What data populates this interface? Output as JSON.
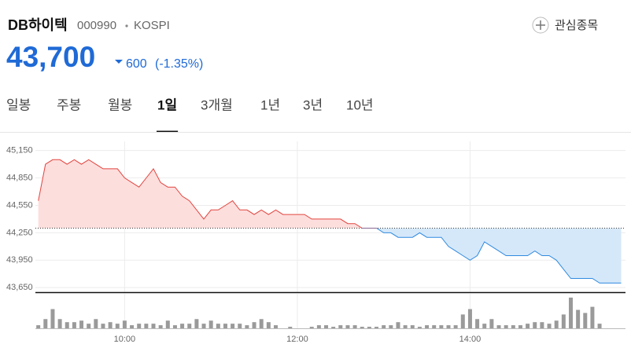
{
  "header": {
    "name": "DB하이텍",
    "code": "000990",
    "market": "KOSPI",
    "watch_button": "관심종목",
    "price": "43,700",
    "change": "600",
    "change_rate": "(-1.35%)"
  },
  "tabs": {
    "items": [
      "일봉",
      "주봉",
      "월봉",
      "1일",
      "3개월",
      "1년",
      "3년",
      "10년"
    ],
    "selected": "1일"
  },
  "chart_data": [
    {
      "type": "line",
      "x": [
        540,
        545,
        550,
        555,
        560,
        565,
        570,
        575,
        580,
        585,
        590,
        595,
        600,
        605,
        610,
        615,
        620,
        625,
        630,
        635,
        640,
        645,
        650,
        655,
        660,
        665,
        670,
        675,
        680,
        685,
        690,
        695,
        700,
        705,
        710,
        715,
        720,
        725,
        730,
        735,
        740,
        745,
        750,
        755,
        760,
        765,
        770,
        775,
        780,
        785,
        790,
        795,
        800,
        805,
        810,
        815,
        820,
        825,
        830,
        835,
        840,
        845,
        850,
        855,
        860,
        865,
        870,
        875,
        880,
        885,
        890,
        895,
        900,
        905,
        910,
        915,
        920,
        925,
        930,
        935,
        940,
        945
      ],
      "values": [
        44600,
        45000,
        45050,
        45050,
        45000,
        45050,
        45000,
        45050,
        45000,
        44950,
        44950,
        44950,
        44850,
        44800,
        44750,
        44850,
        44950,
        44800,
        44750,
        44750,
        44650,
        44600,
        44500,
        44400,
        44500,
        44500,
        44550,
        44600,
        44500,
        44500,
        44450,
        44500,
        44450,
        44500,
        44450,
        44450,
        44450,
        44450,
        44400,
        44400,
        44400,
        44400,
        44400,
        44350,
        44350,
        44300,
        44300,
        44300,
        44250,
        44250,
        44200,
        44200,
        44200,
        44250,
        44200,
        44200,
        44200,
        44100,
        44050,
        44000,
        43950,
        44000,
        44150,
        44100,
        44050,
        44000,
        44000,
        44000,
        44000,
        44050,
        44000,
        44000,
        43950,
        43850,
        43750,
        43750,
        43750,
        43750,
        43700,
        43700,
        43700,
        43700
      ],
      "reference_value": 44300,
      "color_above": "#e2453f",
      "color_below": "#2f8ae0",
      "fill_above": "#fcdedd",
      "fill_below": "#d5e8fa",
      "xlim": [
        538,
        948
      ],
      "xticks": [
        {
          "value": 600,
          "label": "10:00"
        },
        {
          "value": 720,
          "label": "12:00"
        },
        {
          "value": 840,
          "label": "14:00"
        }
      ],
      "ylim": [
        43600,
        45250
      ],
      "yticks": [
        {
          "value": 45150,
          "label": "45,150"
        },
        {
          "value": 44850,
          "label": "44,850"
        },
        {
          "value": 44550,
          "label": "44,550"
        },
        {
          "value": 44250,
          "label": "44,250"
        },
        {
          "value": 43950,
          "label": "43,950"
        },
        {
          "value": 43650,
          "label": "43,650"
        }
      ],
      "grid": true
    },
    {
      "type": "bar",
      "x": [
        540,
        545,
        550,
        555,
        560,
        565,
        570,
        575,
        580,
        585,
        590,
        595,
        600,
        605,
        610,
        615,
        620,
        625,
        630,
        635,
        640,
        645,
        650,
        655,
        660,
        665,
        670,
        675,
        680,
        685,
        690,
        695,
        700,
        705,
        710,
        715,
        720,
        725,
        730,
        735,
        740,
        745,
        750,
        755,
        760,
        765,
        770,
        775,
        780,
        785,
        790,
        795,
        800,
        805,
        810,
        815,
        820,
        825,
        830,
        835,
        840,
        845,
        850,
        855,
        860,
        865,
        870,
        875,
        880,
        885,
        890,
        895,
        900,
        905,
        910,
        915,
        920,
        925,
        930
      ],
      "values": [
        4,
        12,
        25,
        12,
        8,
        8,
        10,
        6,
        12,
        6,
        8,
        6,
        10,
        4,
        6,
        6,
        6,
        4,
        10,
        4,
        6,
        6,
        12,
        6,
        10,
        6,
        6,
        6,
        6,
        4,
        8,
        12,
        8,
        4,
        0,
        2,
        0,
        0,
        2,
        4,
        4,
        2,
        4,
        4,
        4,
        2,
        2,
        2,
        4,
        4,
        8,
        4,
        4,
        2,
        4,
        4,
        4,
        4,
        4,
        18,
        25,
        12,
        6,
        12,
        4,
        4,
        4,
        4,
        6,
        8,
        8,
        6,
        10,
        18,
        40,
        24,
        20,
        28,
        6
      ],
      "color": "#9a9a9a",
      "xlim": [
        538,
        948
      ],
      "ylim": [
        0,
        45
      ]
    }
  ]
}
